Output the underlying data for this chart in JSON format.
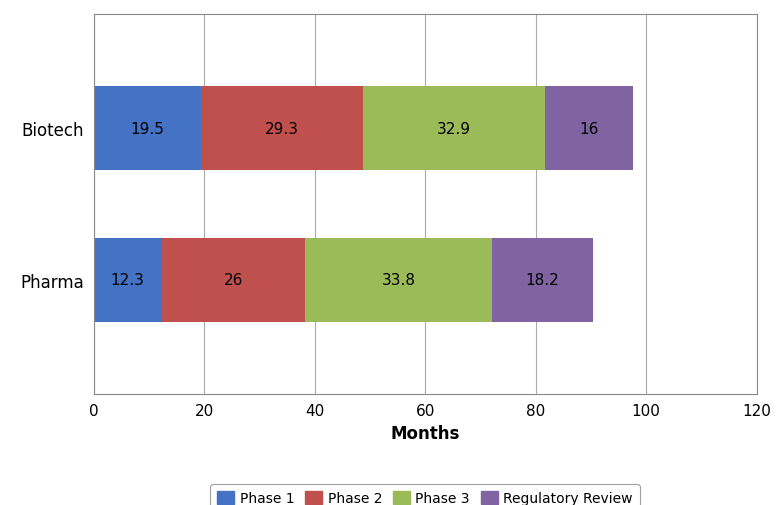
{
  "categories": [
    "Pharma",
    "Biotech"
  ],
  "phase1": [
    12.3,
    19.5
  ],
  "phase2": [
    26,
    29.3
  ],
  "phase3": [
    33.8,
    32.9
  ],
  "regulatory": [
    18.2,
    16
  ],
  "colors": {
    "phase1": "#4472C4",
    "phase2": "#C0504D",
    "phase3": "#9BBB59",
    "regulatory": "#8064A2"
  },
  "legend_labels": [
    "Phase 1",
    "Phase 2",
    "Phase 3",
    "Regulatory Review"
  ],
  "xlabel": "Months",
  "xlim": [
    0,
    120
  ],
  "xticks": [
    0,
    20,
    40,
    60,
    80,
    100,
    120
  ],
  "ylim": [
    -0.75,
    1.75
  ],
  "bar_height": 0.55,
  "label_fontsize": 11,
  "tick_fontsize": 11,
  "xlabel_fontsize": 12,
  "figure_bg": "#ffffff",
  "axes_bg": "#ffffff"
}
